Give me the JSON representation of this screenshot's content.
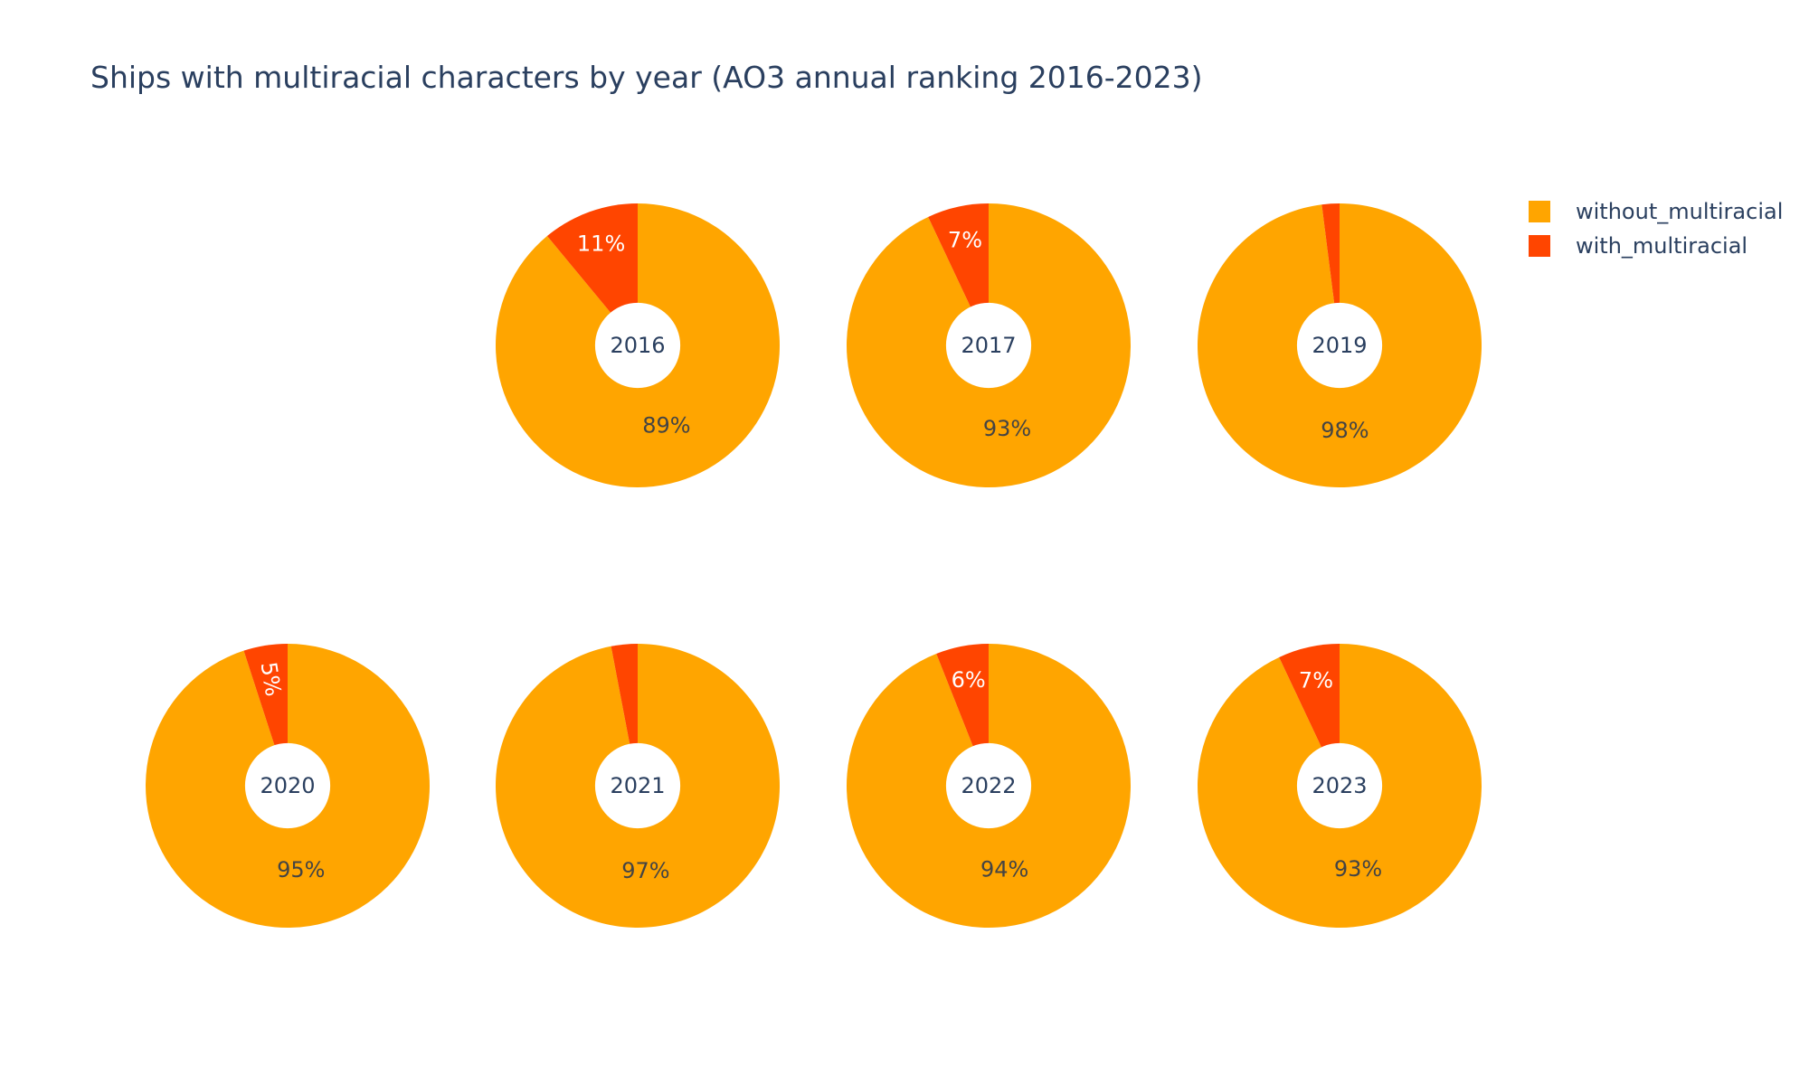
{
  "chart_data": {
    "type": "pie",
    "title": "Ships with multiracial characters by year (AO3 annual ranking 2016-2023)",
    "legend": {
      "placement": "top-right",
      "entries": [
        {
          "name": "without_multiracial",
          "color": "#FFA500"
        },
        {
          "name": "with_multiracial",
          "color": "#FF4500"
        }
      ]
    },
    "colors": {
      "without_multiracial": "#FFA500",
      "with_multiracial": "#FF4500",
      "label_on_dark": "#ffffff",
      "label_on_light": "#444444",
      "center_label": "#2a3f5f"
    },
    "hole": 0.3,
    "pies": [
      {
        "year": "2016",
        "without_multiracial": 89,
        "with_multiracial": 11,
        "labels": {
          "without": "89%",
          "with": "11%"
        }
      },
      {
        "year": "2017",
        "without_multiracial": 93,
        "with_multiracial": 7,
        "labels": {
          "without": "93%",
          "with": "7%"
        }
      },
      {
        "year": "2019",
        "without_multiracial": 98,
        "with_multiracial": 2,
        "labels": {
          "without": "98%",
          "with": ""
        }
      },
      {
        "year": "2020",
        "without_multiracial": 95,
        "with_multiracial": 5,
        "labels": {
          "without": "95%",
          "with": "5%"
        }
      },
      {
        "year": "2021",
        "without_multiracial": 97,
        "with_multiracial": 3,
        "labels": {
          "without": "97%",
          "with": ""
        }
      },
      {
        "year": "2022",
        "without_multiracial": 94,
        "with_multiracial": 6,
        "labels": {
          "without": "94%",
          "with": "6%"
        }
      },
      {
        "year": "2023",
        "without_multiracial": 93,
        "with_multiracial": 7,
        "labels": {
          "without": "93%",
          "with": "7%"
        }
      }
    ]
  }
}
